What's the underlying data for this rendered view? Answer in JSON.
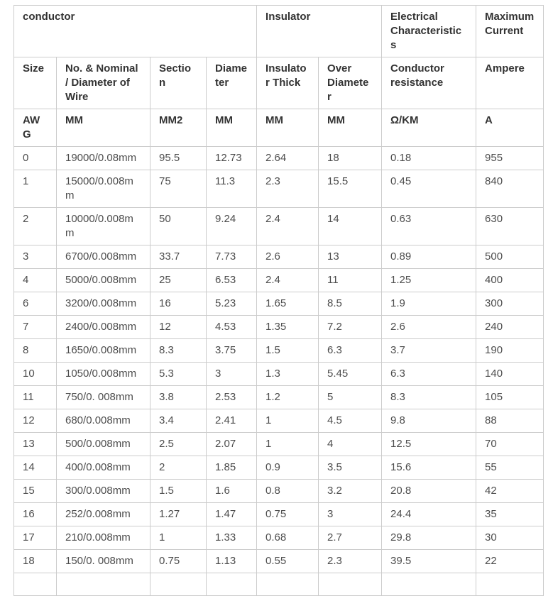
{
  "page": {
    "background_color": "#ffffff"
  },
  "colors": {
    "border": "#cccccc",
    "header_text": "#333333",
    "body_text": "#4d4d4d"
  },
  "table": {
    "title": "wire-specification-table",
    "group_headers": [
      {
        "label": "conductor",
        "colspan": 4
      },
      {
        "label": "Insulator",
        "colspan": 2
      },
      {
        "label": "Electrical Characteristics",
        "colspan": 1
      },
      {
        "label": "Maximum Current",
        "colspan": 1
      }
    ],
    "column_headers": [
      "Size",
      "No. & Nominal / Diameter of Wire",
      "Section",
      "Diameter",
      "Insulator Thick",
      "Over Diameter",
      "Conductor resistance",
      "Ampere"
    ],
    "units": [
      "AWG",
      "MM",
      "MM2",
      "MM",
      "MM",
      "MM",
      "Ω/KM",
      "A"
    ],
    "rows": [
      [
        "0",
        "19000/0.08mm",
        "95.5",
        "12.73",
        "2.64",
        "18",
        "0.18",
        "955"
      ],
      [
        "1",
        "15000/0.008mm",
        "75",
        "11.3",
        "2.3",
        "15.5",
        "0.45",
        "840"
      ],
      [
        "2",
        "10000/0.008mm",
        "50",
        "9.24",
        "2.4",
        "14",
        "0.63",
        "630"
      ],
      [
        "3",
        "6700/0.008mm",
        "33.7",
        "7.73",
        "2.6",
        "13",
        "0.89",
        "500"
      ],
      [
        "4",
        "5000/0.008mm",
        "25",
        "6.53",
        "2.4",
        "11",
        "1.25",
        "400"
      ],
      [
        "6",
        "3200/0.008mm",
        "16",
        "5.23",
        "1.65",
        "8.5",
        "1.9",
        "300"
      ],
      [
        "7",
        "2400/0.008mm",
        "12",
        "4.53",
        "1.35",
        "7.2",
        "2.6",
        "240"
      ],
      [
        "8",
        "1650/0.008mm",
        "8.3",
        "3.75",
        "1.5",
        "6.3",
        "3.7",
        "190"
      ],
      [
        "10",
        "1050/0.008mm",
        "5.3",
        "3",
        "1.3",
        "5.45",
        "6.3",
        "140"
      ],
      [
        "11",
        "750/0. 008mm",
        "3.8",
        "2.53",
        "1.2",
        "5",
        "8.3",
        "105"
      ],
      [
        "12",
        "680/0.008mm",
        "3.4",
        "2.41",
        "1",
        "4.5",
        "9.8",
        "88"
      ],
      [
        "13",
        "500/0.008mm",
        "2.5",
        "2.07",
        "1",
        "4",
        "12.5",
        "70"
      ],
      [
        "14",
        "400/0.008mm",
        "2",
        "1.85",
        "0.9",
        "3.5",
        "15.6",
        "55"
      ],
      [
        "15",
        "300/0.008mm",
        "1.5",
        "1.6",
        "0.8",
        "3.2",
        "20.8",
        "42"
      ],
      [
        "16",
        "252/0.008mm",
        "1.27",
        "1.47",
        "0.75",
        "3",
        "24.4",
        "35"
      ],
      [
        "17",
        "210/0.008mm",
        "1",
        "1.33",
        "0.68",
        "2.7",
        "29.8",
        "30"
      ],
      [
        "18",
        "150/0. 008mm",
        "0.75",
        "1.13",
        "0.55",
        "2.3",
        "39.5",
        "22"
      ]
    ]
  }
}
